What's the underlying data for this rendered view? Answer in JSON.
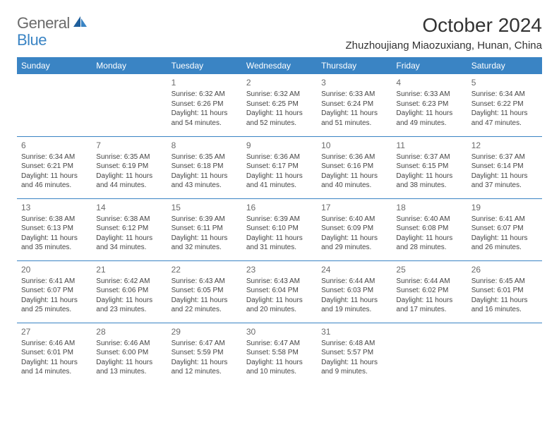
{
  "logo": {
    "general": "General",
    "blue": "Blue"
  },
  "title": "October 2024",
  "location": "Zhuzhoujiang Miaozuxiang, Hunan, China",
  "colors": {
    "accent": "#3a84c4",
    "text": "#333333",
    "daynum": "#6b6b6b",
    "bg": "#ffffff"
  },
  "day_headers": [
    "Sunday",
    "Monday",
    "Tuesday",
    "Wednesday",
    "Thursday",
    "Friday",
    "Saturday"
  ],
  "weeks": [
    [
      null,
      null,
      {
        "n": "1",
        "sr": "Sunrise: 6:32 AM",
        "ss": "Sunset: 6:26 PM",
        "dl1": "Daylight: 11 hours",
        "dl2": "and 54 minutes."
      },
      {
        "n": "2",
        "sr": "Sunrise: 6:32 AM",
        "ss": "Sunset: 6:25 PM",
        "dl1": "Daylight: 11 hours",
        "dl2": "and 52 minutes."
      },
      {
        "n": "3",
        "sr": "Sunrise: 6:33 AM",
        "ss": "Sunset: 6:24 PM",
        "dl1": "Daylight: 11 hours",
        "dl2": "and 51 minutes."
      },
      {
        "n": "4",
        "sr": "Sunrise: 6:33 AM",
        "ss": "Sunset: 6:23 PM",
        "dl1": "Daylight: 11 hours",
        "dl2": "and 49 minutes."
      },
      {
        "n": "5",
        "sr": "Sunrise: 6:34 AM",
        "ss": "Sunset: 6:22 PM",
        "dl1": "Daylight: 11 hours",
        "dl2": "and 47 minutes."
      }
    ],
    [
      {
        "n": "6",
        "sr": "Sunrise: 6:34 AM",
        "ss": "Sunset: 6:21 PM",
        "dl1": "Daylight: 11 hours",
        "dl2": "and 46 minutes."
      },
      {
        "n": "7",
        "sr": "Sunrise: 6:35 AM",
        "ss": "Sunset: 6:19 PM",
        "dl1": "Daylight: 11 hours",
        "dl2": "and 44 minutes."
      },
      {
        "n": "8",
        "sr": "Sunrise: 6:35 AM",
        "ss": "Sunset: 6:18 PM",
        "dl1": "Daylight: 11 hours",
        "dl2": "and 43 minutes."
      },
      {
        "n": "9",
        "sr": "Sunrise: 6:36 AM",
        "ss": "Sunset: 6:17 PM",
        "dl1": "Daylight: 11 hours",
        "dl2": "and 41 minutes."
      },
      {
        "n": "10",
        "sr": "Sunrise: 6:36 AM",
        "ss": "Sunset: 6:16 PM",
        "dl1": "Daylight: 11 hours",
        "dl2": "and 40 minutes."
      },
      {
        "n": "11",
        "sr": "Sunrise: 6:37 AM",
        "ss": "Sunset: 6:15 PM",
        "dl1": "Daylight: 11 hours",
        "dl2": "and 38 minutes."
      },
      {
        "n": "12",
        "sr": "Sunrise: 6:37 AM",
        "ss": "Sunset: 6:14 PM",
        "dl1": "Daylight: 11 hours",
        "dl2": "and 37 minutes."
      }
    ],
    [
      {
        "n": "13",
        "sr": "Sunrise: 6:38 AM",
        "ss": "Sunset: 6:13 PM",
        "dl1": "Daylight: 11 hours",
        "dl2": "and 35 minutes."
      },
      {
        "n": "14",
        "sr": "Sunrise: 6:38 AM",
        "ss": "Sunset: 6:12 PM",
        "dl1": "Daylight: 11 hours",
        "dl2": "and 34 minutes."
      },
      {
        "n": "15",
        "sr": "Sunrise: 6:39 AM",
        "ss": "Sunset: 6:11 PM",
        "dl1": "Daylight: 11 hours",
        "dl2": "and 32 minutes."
      },
      {
        "n": "16",
        "sr": "Sunrise: 6:39 AM",
        "ss": "Sunset: 6:10 PM",
        "dl1": "Daylight: 11 hours",
        "dl2": "and 31 minutes."
      },
      {
        "n": "17",
        "sr": "Sunrise: 6:40 AM",
        "ss": "Sunset: 6:09 PM",
        "dl1": "Daylight: 11 hours",
        "dl2": "and 29 minutes."
      },
      {
        "n": "18",
        "sr": "Sunrise: 6:40 AM",
        "ss": "Sunset: 6:08 PM",
        "dl1": "Daylight: 11 hours",
        "dl2": "and 28 minutes."
      },
      {
        "n": "19",
        "sr": "Sunrise: 6:41 AM",
        "ss": "Sunset: 6:07 PM",
        "dl1": "Daylight: 11 hours",
        "dl2": "and 26 minutes."
      }
    ],
    [
      {
        "n": "20",
        "sr": "Sunrise: 6:41 AM",
        "ss": "Sunset: 6:07 PM",
        "dl1": "Daylight: 11 hours",
        "dl2": "and 25 minutes."
      },
      {
        "n": "21",
        "sr": "Sunrise: 6:42 AM",
        "ss": "Sunset: 6:06 PM",
        "dl1": "Daylight: 11 hours",
        "dl2": "and 23 minutes."
      },
      {
        "n": "22",
        "sr": "Sunrise: 6:43 AM",
        "ss": "Sunset: 6:05 PM",
        "dl1": "Daylight: 11 hours",
        "dl2": "and 22 minutes."
      },
      {
        "n": "23",
        "sr": "Sunrise: 6:43 AM",
        "ss": "Sunset: 6:04 PM",
        "dl1": "Daylight: 11 hours",
        "dl2": "and 20 minutes."
      },
      {
        "n": "24",
        "sr": "Sunrise: 6:44 AM",
        "ss": "Sunset: 6:03 PM",
        "dl1": "Daylight: 11 hours",
        "dl2": "and 19 minutes."
      },
      {
        "n": "25",
        "sr": "Sunrise: 6:44 AM",
        "ss": "Sunset: 6:02 PM",
        "dl1": "Daylight: 11 hours",
        "dl2": "and 17 minutes."
      },
      {
        "n": "26",
        "sr": "Sunrise: 6:45 AM",
        "ss": "Sunset: 6:01 PM",
        "dl1": "Daylight: 11 hours",
        "dl2": "and 16 minutes."
      }
    ],
    [
      {
        "n": "27",
        "sr": "Sunrise: 6:46 AM",
        "ss": "Sunset: 6:01 PM",
        "dl1": "Daylight: 11 hours",
        "dl2": "and 14 minutes."
      },
      {
        "n": "28",
        "sr": "Sunrise: 6:46 AM",
        "ss": "Sunset: 6:00 PM",
        "dl1": "Daylight: 11 hours",
        "dl2": "and 13 minutes."
      },
      {
        "n": "29",
        "sr": "Sunrise: 6:47 AM",
        "ss": "Sunset: 5:59 PM",
        "dl1": "Daylight: 11 hours",
        "dl2": "and 12 minutes."
      },
      {
        "n": "30",
        "sr": "Sunrise: 6:47 AM",
        "ss": "Sunset: 5:58 PM",
        "dl1": "Daylight: 11 hours",
        "dl2": "and 10 minutes."
      },
      {
        "n": "31",
        "sr": "Sunrise: 6:48 AM",
        "ss": "Sunset: 5:57 PM",
        "dl1": "Daylight: 11 hours",
        "dl2": "and 9 minutes."
      },
      null,
      null
    ]
  ]
}
